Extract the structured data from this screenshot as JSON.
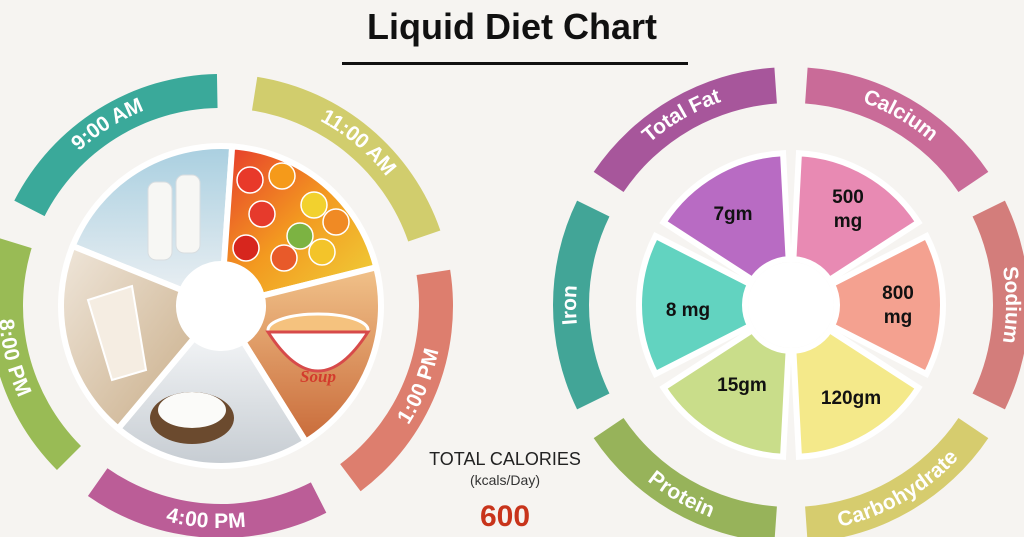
{
  "title": "Liquid Diet Chart",
  "colors": {
    "teal": "#3aa99a",
    "olive": "#d1cd6d",
    "salmon": "#dd7e6e",
    "magenta": "#bb5d97",
    "green": "#99bb55"
  },
  "calories": {
    "label": "TOTAL CALORIES",
    "unit": "(kcals/Day)",
    "value": "600"
  },
  "chart_data": [
    {
      "type": "pie",
      "labels": [
        "9:00 AM",
        "11:00 AM",
        "1:00 PM",
        "4:00 PM",
        "8:00 PM"
      ],
      "segment_colors": [
        "#3aa99a",
        "#d1cd6d",
        "#dd7e6e",
        "#bb5d97",
        "#99bb55"
      ],
      "image_icons": [
        "milk-bottles-icon",
        "fruit-bowl-icon",
        "soup-bowl-icon",
        "coconut-water-icon",
        "milkshake-icon"
      ]
    },
    {
      "type": "pie",
      "categories": [
        "Total Fat",
        "Calcium",
        "Sodium",
        "Carbohydrate",
        "Protein",
        "Iron"
      ],
      "values": [
        "7gm",
        "500 mg",
        "800 mg",
        "120gm",
        "15gm",
        "8 mg"
      ],
      "ring_colors": [
        "#a7569b",
        "#c96b98",
        "#d37d7b",
        "#d6cc6e",
        "#97b35a",
        "#42a597"
      ],
      "inner_colors": [
        "#b86bc3",
        "#e88ab3",
        "#f4a190",
        "#f4e98a",
        "#c9dd8a",
        "#62d3c0"
      ]
    }
  ]
}
